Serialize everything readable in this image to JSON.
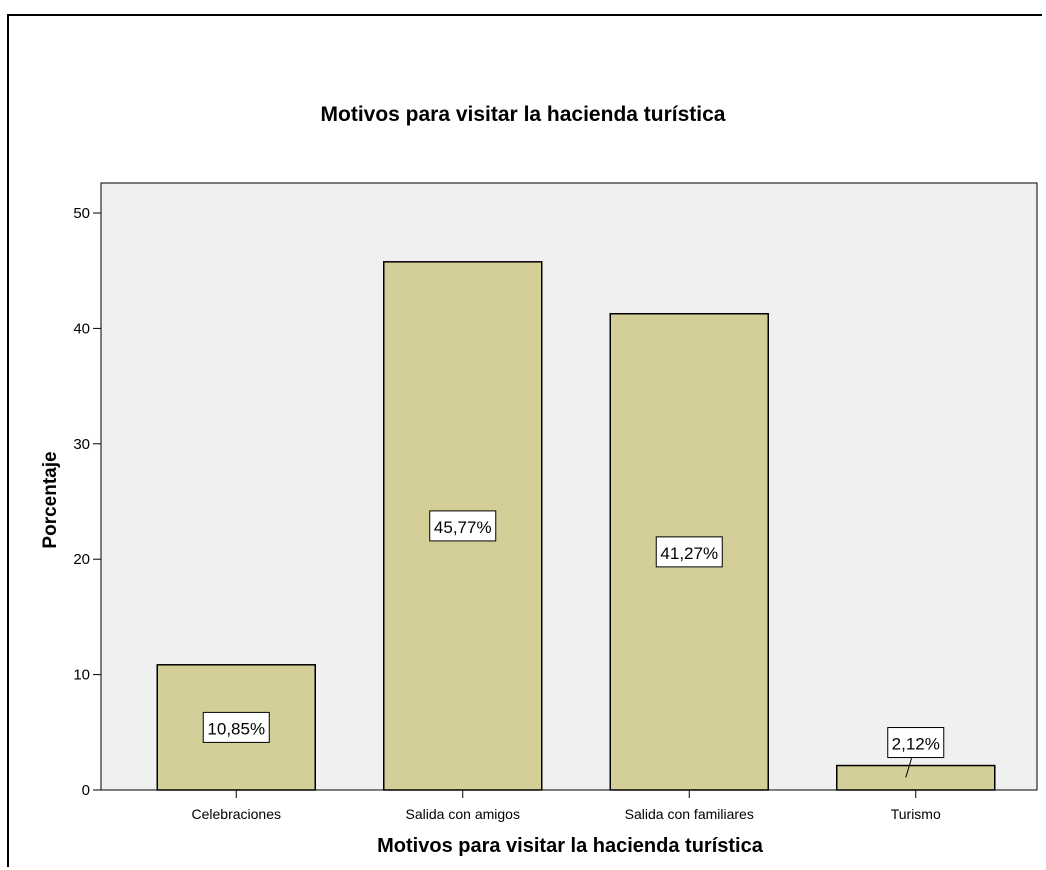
{
  "chart_data": {
    "type": "bar",
    "title": "Motivos para visitar la hacienda turística",
    "xlabel": "Motivos para visitar la hacienda turística",
    "ylabel": "Porcentaje",
    "categories": [
      "Celebraciones",
      "Salida con amigos",
      "Salida con familiares",
      "Turismo"
    ],
    "values": [
      10.85,
      45.77,
      41.27,
      2.12
    ],
    "data_labels": [
      "10,85%",
      "45,77%",
      "41,27%",
      "2,12%"
    ],
    "ylim": [
      0,
      50
    ],
    "yticks": [
      "0",
      "10",
      "20",
      "30",
      "40",
      "50"
    ],
    "grid": false,
    "legend": "none",
    "colors": {
      "bar": "#d4cf98",
      "plot_bg": "#f0f0f0",
      "label_bg": "#ffffff"
    }
  }
}
